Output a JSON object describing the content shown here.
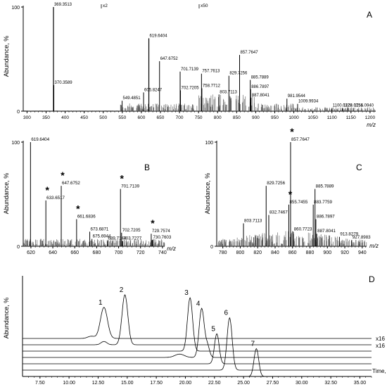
{
  "chart_data": [
    {
      "panel": "A",
      "type": "bar",
      "ylabel": "Abundance, %",
      "xlabel": "m/z",
      "xlim": [
        290,
        1215
      ],
      "ylim": [
        0,
        100
      ],
      "xticks": [
        300,
        350,
        400,
        450,
        500,
        550,
        600,
        650,
        700,
        750,
        800,
        850,
        900,
        950,
        1000,
        1050,
        1100,
        1150,
        1200
      ],
      "yticks": [
        0,
        100
      ],
      "annotations": [
        "x2",
        "x50"
      ],
      "peaks": [
        {
          "x": 369.3513,
          "y": 100,
          "label": "369.3513"
        },
        {
          "x": 370.3589,
          "y": 25,
          "label": "370.3589"
        },
        {
          "x": 549.4851,
          "y": 10,
          "label": "549.4851"
        },
        {
          "x": 605.8247,
          "y": 18,
          "label": "605.8247"
        },
        {
          "x": 619.6404,
          "y": 70,
          "label": "619.6404"
        },
        {
          "x": 647.6752,
          "y": 48,
          "label": "647.6752"
        },
        {
          "x": 701.7139,
          "y": 38,
          "label": "701.7139"
        },
        {
          "x": 702.7205,
          "y": 20,
          "label": "702.7205"
        },
        {
          "x": 757.7613,
          "y": 36,
          "label": "757.7613"
        },
        {
          "x": 758.7712,
          "y": 22,
          "label": "758.7712"
        },
        {
          "x": 803.7113,
          "y": 16,
          "label": "803.7113"
        },
        {
          "x": 829.7256,
          "y": 34,
          "label": "829.7256"
        },
        {
          "x": 857.7647,
          "y": 54,
          "label": "857.7647"
        },
        {
          "x": 885.7889,
          "y": 30,
          "label": "885.7889"
        },
        {
          "x": 886.7897,
          "y": 21,
          "label": "886.7897"
        },
        {
          "x": 887.8041,
          "y": 13,
          "label": "887.8041"
        },
        {
          "x": 981.9544,
          "y": 12,
          "label": "981.9544"
        },
        {
          "x": 1009.9934,
          "y": 7,
          "label": "1009.9934"
        },
        {
          "x": 1100.0378,
          "y": 3,
          "label": "1100.0378"
        },
        {
          "x": 1128.0751,
          "y": 3,
          "label": "1128.0751"
        },
        {
          "x": 1156.094,
          "y": 3,
          "label": "1156.0940"
        }
      ]
    },
    {
      "panel": "B",
      "type": "bar",
      "ylabel": "Abundance, %",
      "xlabel": "m/z",
      "xlim": [
        613,
        742
      ],
      "ylim": [
        0,
        100
      ],
      "xticks": [
        620,
        640,
        660,
        680,
        700,
        720,
        740
      ],
      "yticks": [
        0,
        100
      ],
      "starred": [
        633.6517,
        647.6752,
        661.6836,
        701.7139,
        729.7574
      ],
      "peaks": [
        {
          "x": 619.6404,
          "y": 100,
          "label": "619.6404"
        },
        {
          "x": 633.6517,
          "y": 44,
          "label": "633.6517"
        },
        {
          "x": 647.6752,
          "y": 58,
          "label": "647.6752"
        },
        {
          "x": 661.6836,
          "y": 26,
          "label": "661.6836"
        },
        {
          "x": 673.6871,
          "y": 14,
          "label": "673.6871"
        },
        {
          "x": 675.6944,
          "y": 7,
          "label": "675.6944"
        },
        {
          "x": 689.7144,
          "y": 5,
          "label": "689.7144"
        },
        {
          "x": 701.7139,
          "y": 55,
          "label": "701.7139"
        },
        {
          "x": 702.7205,
          "y": 13,
          "label": "702.7205"
        },
        {
          "x": 703.7277,
          "y": 5,
          "label": "703.7277"
        },
        {
          "x": 729.7574,
          "y": 12,
          "label": "729.7574"
        },
        {
          "x": 730.7603,
          "y": 6,
          "label": "730.7603"
        }
      ]
    },
    {
      "panel": "C",
      "type": "bar",
      "ylabel": "Abundance, %",
      "xlabel": "m/z",
      "xlim": [
        773,
        945
      ],
      "ylim": [
        0,
        100
      ],
      "xticks": [
        780,
        800,
        820,
        840,
        860,
        880,
        900,
        920,
        940
      ],
      "yticks": [
        0,
        100
      ],
      "starred": [
        855.7455,
        857.7647
      ],
      "peaks": [
        {
          "x": 803.7113,
          "y": 22,
          "label": "803.7113"
        },
        {
          "x": 829.7256,
          "y": 58,
          "label": "829.7256"
        },
        {
          "x": 832.7467,
          "y": 30,
          "label": "832.7467"
        },
        {
          "x": 855.7455,
          "y": 40,
          "label": "855.7455"
        },
        {
          "x": 857.7647,
          "y": 100,
          "label": "857.7647"
        },
        {
          "x": 860.7723,
          "y": 14,
          "label": "860.7723"
        },
        {
          "x": 883.7759,
          "y": 40,
          "label": "883.7759"
        },
        {
          "x": 885.7889,
          "y": 55,
          "label": "885.7889"
        },
        {
          "x": 886.7897,
          "y": 26,
          "label": "886.7897"
        },
        {
          "x": 887.8041,
          "y": 12,
          "label": "887.8041"
        },
        {
          "x": 913.8279,
          "y": 9,
          "label": "913.8279"
        },
        {
          "x": 927.8983,
          "y": 6,
          "label": "927.8983"
        }
      ]
    },
    {
      "panel": "D",
      "type": "line",
      "ylabel": "Abundance, %",
      "xlabel": "Time, min",
      "xlim": [
        6.0,
        36.0
      ],
      "xticks": [
        7.5,
        10.0,
        12.5,
        15.0,
        17.5,
        20.0,
        22.5,
        25.0,
        27.5,
        30.0,
        32.5,
        35.0
      ],
      "xtick_labels": [
        "7.50",
        "10.00",
        "12.50",
        "15.00",
        "17.50",
        "20.00",
        "22.50",
        "25.00",
        "27.50",
        "30.00",
        "32.50",
        "35.00"
      ],
      "scale_labels": [
        "x16",
        "x16"
      ],
      "series": [
        {
          "name": "1",
          "peaks": [
            {
              "t": 13.0,
              "h": 28,
              "w": 0.3
            },
            {
              "t": 11.9,
              "h": 2,
              "w": 0.3
            }
          ]
        },
        {
          "name": "2",
          "peaks": [
            {
              "t": 14.8,
              "h": 45,
              "w": 0.25
            },
            {
              "t": 13.0,
              "h": 3,
              "w": 0.25
            }
          ]
        },
        {
          "name": "3",
          "peaks": [
            {
              "t": 20.4,
              "h": 48,
              "w": 0.22
            }
          ]
        },
        {
          "name": "4",
          "peaks": [
            {
              "t": 21.4,
              "h": 44,
              "w": 0.22
            },
            {
              "t": 21.9,
              "h": 10,
              "w": 0.18
            },
            {
              "t": 19.5,
              "h": 3,
              "w": 0.4
            }
          ]
        },
        {
          "name": "5",
          "peaks": [
            {
              "t": 22.7,
              "h": 27,
              "w": 0.2
            }
          ]
        },
        {
          "name": "6",
          "peaks": [
            {
              "t": 23.8,
              "h": 47,
              "w": 0.22
            }
          ]
        },
        {
          "name": "7",
          "peaks": [
            {
              "t": 26.1,
              "h": 25,
              "w": 0.2
            }
          ]
        }
      ]
    }
  ],
  "panel_letters": [
    "A",
    "B",
    "C",
    "D"
  ]
}
